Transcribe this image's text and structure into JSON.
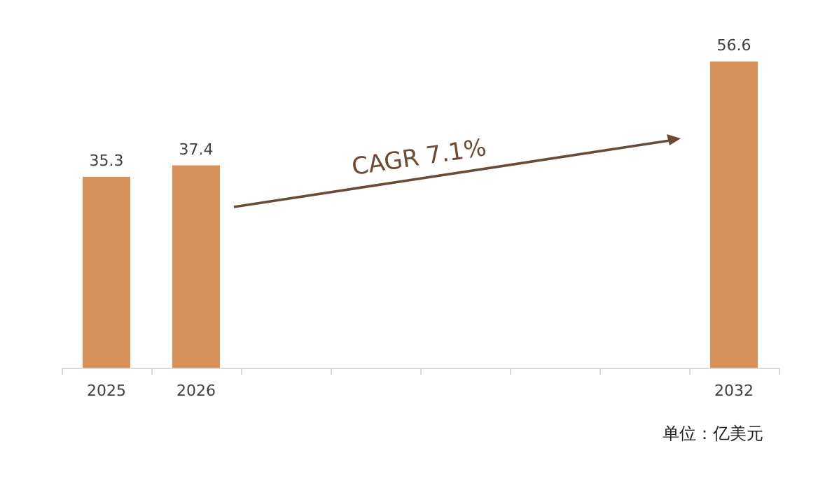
{
  "chart_data": {
    "type": "bar",
    "categories": [
      "2025",
      "2026",
      null,
      null,
      null,
      null,
      null,
      "2032"
    ],
    "values": [
      35.3,
      37.4,
      null,
      null,
      null,
      null,
      null,
      56.6
    ],
    "color": "#d79159",
    "data_labels": true,
    "annotations": [
      "CAGR  7.1%",
      "单位：亿美元"
    ]
  }
}
